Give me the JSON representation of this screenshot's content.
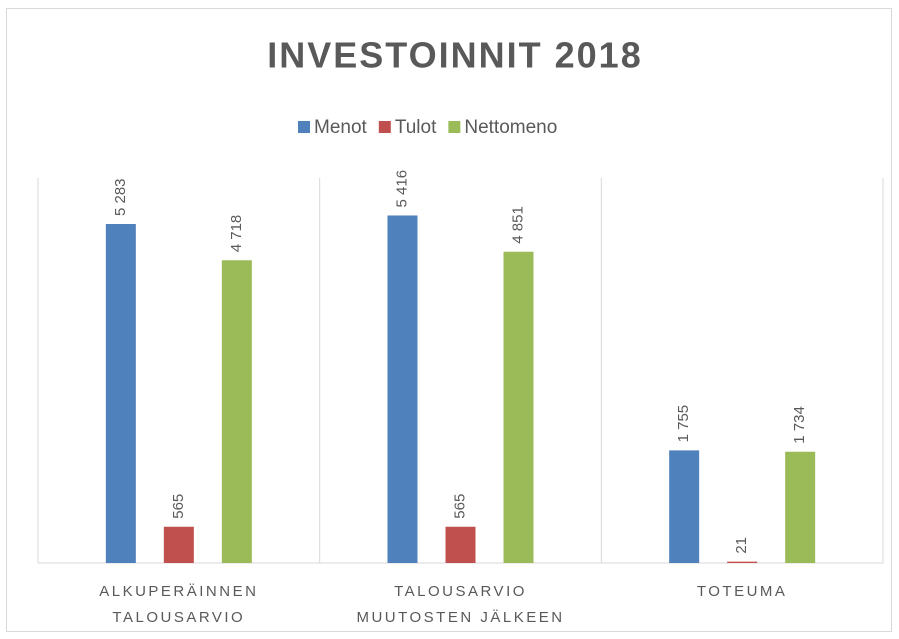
{
  "chart_data": {
    "type": "bar",
    "title": "INVESTOINNIT 2018",
    "categories": [
      "ALKUPERÄINNEN TALOUSARVIO",
      "TALOUSARVIO MUUTOSTEN JÄLKEEN",
      "TOTEUMA"
    ],
    "series": [
      {
        "name": "Menot",
        "color": "#4f81bd",
        "values": [
          5283,
          5416,
          1755
        ],
        "value_labels": [
          "5 283",
          "5 416",
          "1 755"
        ]
      },
      {
        "name": "Tulot",
        "color": "#c0504d",
        "values": [
          565,
          565,
          21
        ],
        "value_labels": [
          "565",
          "565",
          "21"
        ]
      },
      {
        "name": "Nettomeno",
        "color": "#9bbb59",
        "values": [
          4718,
          4851,
          1734
        ],
        "value_labels": [
          "4 718",
          "4 851",
          "1 734"
        ]
      }
    ],
    "ylim": [
      0,
      6000
    ],
    "legend": "top"
  }
}
